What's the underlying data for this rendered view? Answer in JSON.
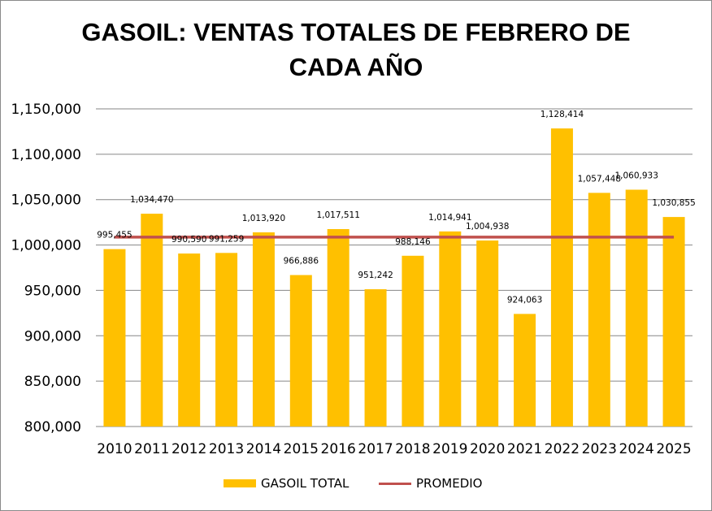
{
  "chart_data": {
    "type": "bar",
    "title_lines": [
      "GASOIL: VENTAS TOTALES DE FEBRERO DE",
      "CADA AÑO"
    ],
    "categories": [
      "2010",
      "2011",
      "2012",
      "2013",
      "2014",
      "2015",
      "2016",
      "2017",
      "2018",
      "2019",
      "2020",
      "2021",
      "2022",
      "2023",
      "2024",
      "2025"
    ],
    "series": [
      {
        "name": "GASOIL TOTAL",
        "kind": "bar",
        "color": "#FFC000",
        "values": [
          995455,
          1034470,
          990590,
          991259,
          1013920,
          966886,
          1017511,
          951242,
          988146,
          1014941,
          1004938,
          924063,
          1128414,
          1057448,
          1060933,
          1030855
        ],
        "labels": [
          "995,455",
          "1,034,470",
          "990,590",
          "991,259",
          "1,013,920",
          "966,886",
          "1,017,511",
          "951,242",
          "988,146",
          "1,014,941",
          "1,004,938",
          "924,063",
          "1,128,414",
          "1,057,448",
          "1,060,933",
          "1,030,855"
        ]
      },
      {
        "name": "PROMEDIO",
        "kind": "line",
        "color": "#C0504D",
        "value": 1008656
      }
    ],
    "ylim": [
      800000,
      1150000
    ],
    "yticks": [
      800000,
      850000,
      900000,
      950000,
      1000000,
      1050000,
      1100000,
      1150000
    ],
    "ytick_labels": [
      "800,000",
      "850,000",
      "900,000",
      "950,000",
      "1,000,000",
      "1,050,000",
      "1,100,000",
      "1,150,000"
    ],
    "grid": true,
    "legend_position": "bottom",
    "xlabel": "",
    "ylabel": ""
  },
  "legend": {
    "bar_label": "GASOIL TOTAL",
    "line_label": "PROMEDIO"
  }
}
